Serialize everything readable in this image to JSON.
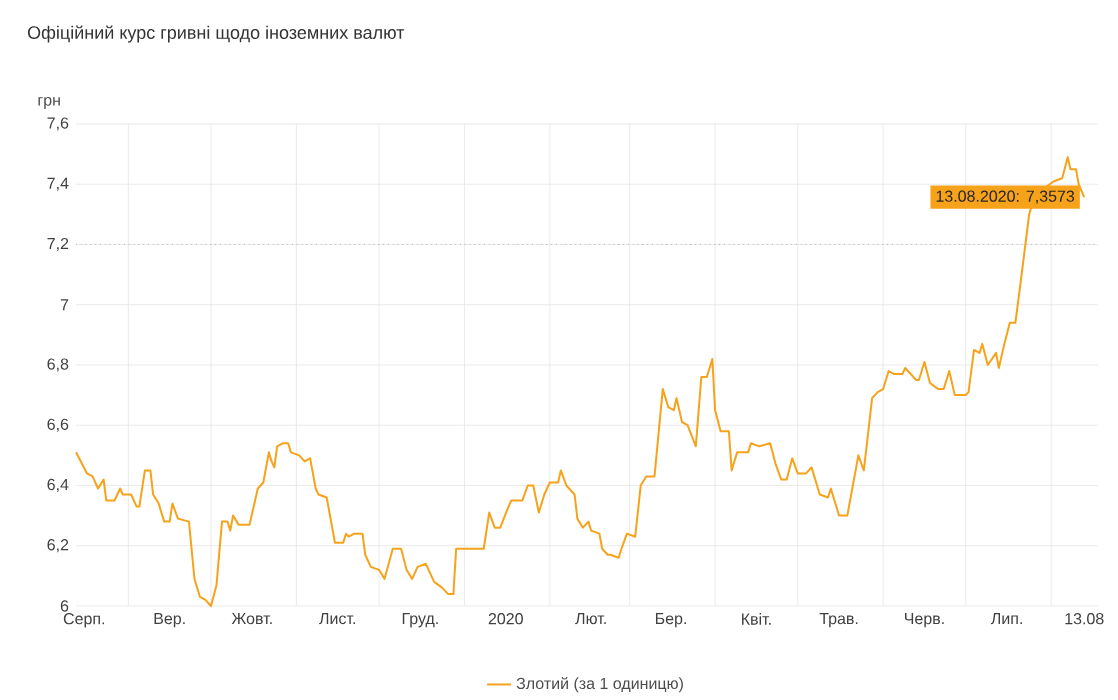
{
  "chart_data": {
    "type": "line",
    "title": "Офіційний курс гривні щодо іноземних валют",
    "ylabel": "грн",
    "xlim": [
      "2019-08-13",
      "2020-08-18"
    ],
    "xticks": [
      {
        "value": "2019-09-01",
        "label": null
      },
      {
        "value": "2019-10-01",
        "label": null
      },
      {
        "value": "2019-11-01",
        "label": null
      },
      {
        "value": "2019-12-01",
        "label": null
      },
      {
        "value": "2020-01-01",
        "label": null
      },
      {
        "value": "2020-02-01",
        "label": null
      },
      {
        "value": "2020-03-01",
        "label": null
      },
      {
        "value": "2020-04-01",
        "label": null
      },
      {
        "value": "2020-05-01",
        "label": null
      },
      {
        "value": "2020-06-01",
        "label": null
      },
      {
        "value": "2020-07-01",
        "label": null
      },
      {
        "value": "2020-08-01",
        "label": null
      },
      {
        "value": "2019-08-16",
        "label": "Серп."
      },
      {
        "value": "2019-09-16",
        "label": "Вер."
      },
      {
        "value": "2019-10-16",
        "label": "Жовт."
      },
      {
        "value": "2019-11-16",
        "label": "Лист."
      },
      {
        "value": "2019-12-16",
        "label": "Груд."
      },
      {
        "value": "2020-01-16",
        "label": "2020"
      },
      {
        "value": "2020-02-16",
        "label": "Лют."
      },
      {
        "value": "2020-03-16",
        "label": "Бер."
      },
      {
        "value": "2020-04-16",
        "label": "Квіт."
      },
      {
        "value": "2020-05-16",
        "label": "Трав."
      },
      {
        "value": "2020-06-16",
        "label": "Черв."
      },
      {
        "value": "2020-07-16",
        "label": "Лип."
      },
      {
        "value": "2020-08-13",
        "label": "13.08"
      }
    ],
    "ylim": [
      6,
      7.6
    ],
    "yticks": [
      {
        "value": 6,
        "label": "6"
      },
      {
        "value": 6.2,
        "label": "6,2"
      },
      {
        "value": 6.4,
        "label": "6,4"
      },
      {
        "value": 6.6,
        "label": "6,6"
      },
      {
        "value": 6.8,
        "label": "6,8"
      },
      {
        "value": 7,
        "label": "7"
      },
      {
        "value": 7.2,
        "label": "7,2"
      },
      {
        "value": 7.4,
        "label": "7,4"
      },
      {
        "value": 7.6,
        "label": "7,6"
      }
    ],
    "grid": true,
    "legend": "bottom",
    "marker": "none",
    "line_style": "solid",
    "ref_lines": [
      {
        "axis": "y",
        "value": 7.2,
        "color": "#999999",
        "line_style": "dotted"
      }
    ],
    "annotations": [
      {
        "text": "13.08.2020: 7,3573",
        "x": "2020-08-13",
        "y": 7.3573
      }
    ],
    "series": [
      {
        "name": "Злотий (за 1 одиницю)",
        "color": "#f7a21b",
        "x": [
          "2019-08-13",
          "2019-08-17",
          "2019-08-19",
          "2019-08-21",
          "2019-08-23",
          "2019-08-24",
          "2019-08-27",
          "2019-08-29",
          "2019-08-30",
          "2019-09-02",
          "2019-09-04",
          "2019-09-05",
          "2019-09-07",
          "2019-09-09",
          "2019-09-10",
          "2019-09-12",
          "2019-09-14",
          "2019-09-16",
          "2019-09-17",
          "2019-09-19",
          "2019-09-23",
          "2019-09-25",
          "2019-09-27",
          "2019-09-29",
          "2019-10-01",
          "2019-10-03",
          "2019-10-05",
          "2019-10-07",
          "2019-10-08",
          "2019-10-09",
          "2019-10-11",
          "2019-10-15",
          "2019-10-18",
          "2019-10-20",
          "2019-10-22",
          "2019-10-23",
          "2019-10-24",
          "2019-10-25",
          "2019-10-27",
          "2019-10-29",
          "2019-10-30",
          "2019-11-02",
          "2019-11-04",
          "2019-11-06",
          "2019-11-08",
          "2019-11-09",
          "2019-11-12",
          "2019-11-15",
          "2019-11-18",
          "2019-11-19",
          "2019-11-20",
          "2019-11-22",
          "2019-11-25",
          "2019-11-26",
          "2019-11-28",
          "2019-12-01",
          "2019-12-03",
          "2019-12-06",
          "2019-12-09",
          "2019-12-11",
          "2019-12-13",
          "2019-12-15",
          "2019-12-18",
          "2019-12-19",
          "2019-12-21",
          "2019-12-24",
          "2019-12-26",
          "2019-12-28",
          "2019-12-29",
          "2020-01-01",
          "2020-01-08",
          "2020-01-10",
          "2020-01-12",
          "2020-01-14",
          "2020-01-17",
          "2020-01-18",
          "2020-01-22",
          "2020-01-24",
          "2020-01-26",
          "2020-01-28",
          "2020-01-30",
          "2020-02-01",
          "2020-02-04",
          "2020-02-05",
          "2020-02-07",
          "2020-02-10",
          "2020-02-11",
          "2020-02-13",
          "2020-02-15",
          "2020-02-16",
          "2020-02-19",
          "2020-02-20",
          "2020-02-22",
          "2020-02-23",
          "2020-02-26",
          "2020-02-27",
          "2020-02-29",
          "2020-03-03",
          "2020-03-05",
          "2020-03-07",
          "2020-03-10",
          "2020-03-13",
          "2020-03-15",
          "2020-03-17",
          "2020-03-18",
          "2020-03-20",
          "2020-03-22",
          "2020-03-25",
          "2020-03-27",
          "2020-03-29",
          "2020-03-31",
          "2020-04-01",
          "2020-04-03",
          "2020-04-06",
          "2020-04-07",
          "2020-04-09",
          "2020-04-13",
          "2020-04-14",
          "2020-04-17",
          "2020-04-21",
          "2020-04-23",
          "2020-04-25",
          "2020-04-27",
          "2020-04-29",
          "2020-05-01",
          "2020-05-04",
          "2020-05-06",
          "2020-05-09",
          "2020-05-12",
          "2020-05-13",
          "2020-05-16",
          "2020-05-19",
          "2020-05-21",
          "2020-05-23",
          "2020-05-25",
          "2020-05-28",
          "2020-05-30",
          "2020-06-01",
          "2020-06-03",
          "2020-06-05",
          "2020-06-08",
          "2020-06-09",
          "2020-06-13",
          "2020-06-14",
          "2020-06-16",
          "2020-06-18",
          "2020-06-21",
          "2020-06-23",
          "2020-06-25",
          "2020-06-27",
          "2020-07-01",
          "2020-07-02",
          "2020-07-04",
          "2020-07-06",
          "2020-07-07",
          "2020-07-09",
          "2020-07-12",
          "2020-07-13",
          "2020-07-15",
          "2020-07-17",
          "2020-07-19",
          "2020-07-21",
          "2020-07-24",
          "2020-07-25",
          "2020-07-30",
          "2020-08-02",
          "2020-08-05",
          "2020-08-07",
          "2020-08-08",
          "2020-08-10",
          "2020-08-11",
          "2020-08-13"
        ],
        "values": [
          6.51,
          6.44,
          6.43,
          6.39,
          6.42,
          6.35,
          6.35,
          6.39,
          6.37,
          6.37,
          6.33,
          6.33,
          6.45,
          6.45,
          6.37,
          6.34,
          6.28,
          6.28,
          6.34,
          6.29,
          6.28,
          6.09,
          6.03,
          6.02,
          6.0,
          6.07,
          6.28,
          6.28,
          6.25,
          6.3,
          6.27,
          6.27,
          6.39,
          6.41,
          6.51,
          6.48,
          6.46,
          6.53,
          6.54,
          6.54,
          6.51,
          6.5,
          6.48,
          6.49,
          6.39,
          6.37,
          6.36,
          6.21,
          6.21,
          6.24,
          6.23,
          6.24,
          6.24,
          6.17,
          6.13,
          6.12,
          6.09,
          6.19,
          6.19,
          6.12,
          6.09,
          6.13,
          6.14,
          6.12,
          6.08,
          6.06,
          6.04,
          6.04,
          6.19,
          6.19,
          6.19,
          6.31,
          6.26,
          6.26,
          6.33,
          6.35,
          6.35,
          6.4,
          6.4,
          6.31,
          6.37,
          6.41,
          6.41,
          6.45,
          6.4,
          6.37,
          6.29,
          6.26,
          6.28,
          6.25,
          6.24,
          6.19,
          6.17,
          6.17,
          6.16,
          6.19,
          6.24,
          6.23,
          6.4,
          6.43,
          6.43,
          6.72,
          6.66,
          6.65,
          6.69,
          6.61,
          6.6,
          6.53,
          6.76,
          6.76,
          6.82,
          6.65,
          6.58,
          6.58,
          6.45,
          6.51,
          6.51,
          6.54,
          6.53,
          6.54,
          6.47,
          6.42,
          6.42,
          6.49,
          6.44,
          6.44,
          6.46,
          6.37,
          6.36,
          6.39,
          6.3,
          6.3,
          6.4,
          6.5,
          6.45,
          6.69,
          6.71,
          6.72,
          6.78,
          6.77,
          6.77,
          6.79,
          6.75,
          6.75,
          6.81,
          6.74,
          6.72,
          6.72,
          6.78,
          6.7,
          6.7,
          6.71,
          6.85,
          6.84,
          6.87,
          6.8,
          6.84,
          6.79,
          6.87,
          6.94,
          6.94,
          7.08,
          7.3,
          7.33,
          7.39,
          7.41,
          7.42,
          7.49,
          7.45,
          7.45,
          7.4,
          7.3573
        ]
      }
    ]
  }
}
